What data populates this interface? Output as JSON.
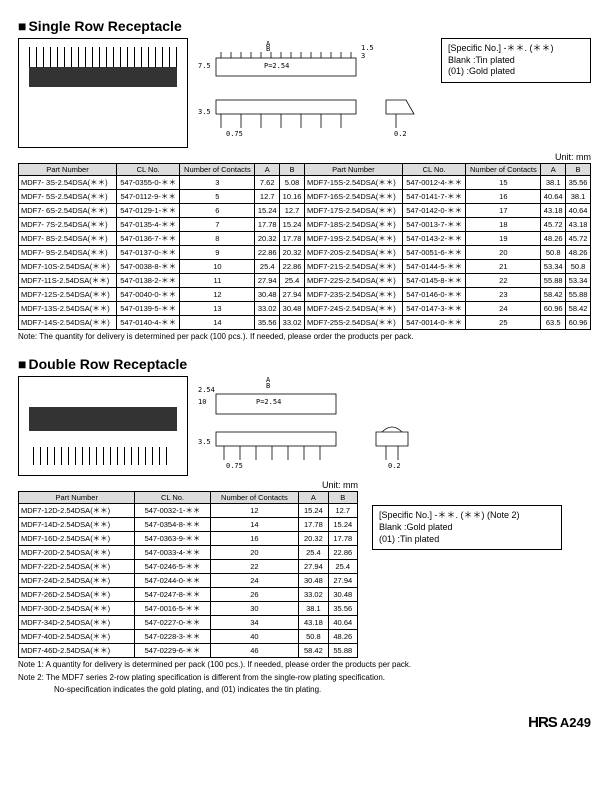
{
  "section1": {
    "title": "Single Row Receptacle",
    "legend": {
      "l1": "[Specific No.]   -＊＊. (＊＊)",
      "l2": "Blank   :Tin plated",
      "l3": "(01)      :Gold plated"
    },
    "unit": "Unit: mm",
    "headers_left": [
      "Part Number",
      "CL No.",
      "Number of Contacts",
      "A",
      "B"
    ],
    "headers_right": [
      "Part Number",
      "CL No.",
      "Number of Contacts",
      "A",
      "B"
    ],
    "rows": [
      [
        "MDF7-  3S-2.54DSA(＊＊)",
        "547-0355-0-＊＊",
        "3",
        "7.62",
        "5.08",
        "MDF7-15S-2.54DSA(＊＊)",
        "547-0012-4-＊＊",
        "15",
        "38.1",
        "35.56"
      ],
      [
        "MDF7-  5S-2.54DSA(＊＊)",
        "547-0112-9-＊＊",
        "5",
        "12.7",
        "10.16",
        "MDF7-16S-2.54DSA(＊＊)",
        "547-0141-7-＊＊",
        "16",
        "40.64",
        "38.1"
      ],
      [
        "MDF7-  6S-2.54DSA(＊＊)",
        "547-0129-1-＊＊",
        "6",
        "15.24",
        "12.7",
        "MDF7-17S-2.54DSA(＊＊)",
        "547-0142-0-＊＊",
        "17",
        "43.18",
        "40.64"
      ],
      [
        "MDF7-  7S-2.54DSA(＊＊)",
        "547-0135-4-＊＊",
        "7",
        "17.78",
        "15.24",
        "MDF7-18S-2.54DSA(＊＊)",
        "547-0013-7-＊＊",
        "18",
        "45.72",
        "43.18"
      ],
      [
        "MDF7-  8S-2.54DSA(＊＊)",
        "547-0136-7-＊＊",
        "8",
        "20.32",
        "17.78",
        "MDF7-19S-2.54DSA(＊＊)",
        "547-0143-2-＊＊",
        "19",
        "48.26",
        "45.72"
      ],
      [
        "MDF7-  9S-2.54DSA(＊＊)",
        "547-0137-0-＊＊",
        "9",
        "22.86",
        "20.32",
        "MDF7-20S-2.54DSA(＊＊)",
        "547-0051-6-＊＊",
        "20",
        "50.8",
        "48.26"
      ],
      [
        "MDF7-10S-2.54DSA(＊＊)",
        "547-0038-8-＊＊",
        "10",
        "25.4",
        "22.86",
        "MDF7-21S-2.54DSA(＊＊)",
        "547-0144-5-＊＊",
        "21",
        "53.34",
        "50.8"
      ],
      [
        "MDF7-11S-2.54DSA(＊＊)",
        "547-0138-2-＊＊",
        "11",
        "27.94",
        "25.4",
        "MDF7-22S-2.54DSA(＊＊)",
        "547-0145-8-＊＊",
        "22",
        "55.88",
        "53.34"
      ],
      [
        "MDF7-12S-2.54DSA(＊＊)",
        "547-0040-0-＊＊",
        "12",
        "30.48",
        "27.94",
        "MDF7-23S-2.54DSA(＊＊)",
        "547-0146-0-＊＊",
        "23",
        "58.42",
        "55.88"
      ],
      [
        "MDF7-13S-2.54DSA(＊＊)",
        "547-0139-5-＊＊",
        "13",
        "33.02",
        "30.48",
        "MDF7-24S-2.54DSA(＊＊)",
        "547-0147-3-＊＊",
        "24",
        "60.96",
        "58.42"
      ],
      [
        "MDF7-14S-2.54DSA(＊＊)",
        "547-0140-4-＊＊",
        "14",
        "35.56",
        "33.02",
        "MDF7-25S-2.54DSA(＊＊)",
        "547-0014-0-＊＊",
        "25",
        "63.5",
        "60.96"
      ]
    ],
    "note": "Note: The quantity for delivery is determined per pack (100 pcs.). If needed, please order the products per pack.",
    "dims": {
      "pitch": "P=2.54",
      "a_label": "A",
      "b_label": "B",
      "h1": "7.5",
      "h2": "3",
      "h3": "1.5",
      "w1": "3.5",
      "w2": "0.75",
      "w3": "0.2"
    }
  },
  "section2": {
    "title": "Double Row Receptacle",
    "legend": {
      "l1": "[Specific No.]   -＊＊. (＊＊) (Note 2)",
      "l2": "Blank   :Gold plated",
      "l3": "(01)      :Tin plated"
    },
    "unit": "Unit: mm",
    "headers": [
      "Part Number",
      "CL No.",
      "Number of Contacts",
      "A",
      "B"
    ],
    "rows": [
      [
        "MDF7-12D-2.54DSA(＊＊)",
        "547-0032-1-＊＊",
        "12",
        "15.24",
        "12.7"
      ],
      [
        "MDF7-14D-2.54DSA(＊＊)",
        "547-0354-8-＊＊",
        "14",
        "17.78",
        "15.24"
      ],
      [
        "MDF7-16D-2.54DSA(＊＊)",
        "547-0363-9-＊＊",
        "16",
        "20.32",
        "17.78"
      ],
      [
        "MDF7-20D-2.54DSA(＊＊)",
        "547-0033-4-＊＊",
        "20",
        "25.4",
        "22.86"
      ],
      [
        "MDF7-22D-2.54DSA(＊＊)",
        "547-0246-5-＊＊",
        "22",
        "27.94",
        "25.4"
      ],
      [
        "MDF7-24D-2.54DSA(＊＊)",
        "547-0244-0-＊＊",
        "24",
        "30.48",
        "27.94"
      ],
      [
        "MDF7-26D-2.54DSA(＊＊)",
        "547-0247-8-＊＊",
        "26",
        "33.02",
        "30.48"
      ],
      [
        "MDF7-30D-2.54DSA(＊＊)",
        "547-0016-5-＊＊",
        "30",
        "38.1",
        "35.56"
      ],
      [
        "MDF7-34D-2.54DSA(＊＊)",
        "547-0227-0-＊＊",
        "34",
        "43.18",
        "40.64"
      ],
      [
        "MDF7-40D-2.54DSA(＊＊)",
        "547-0228-3-＊＊",
        "40",
        "50.8",
        "48.26"
      ],
      [
        "MDF7-46D-2.54DSA(＊＊)",
        "547-0229-6-＊＊",
        "46",
        "58.42",
        "55.88"
      ]
    ],
    "note1": "Note 1: A quantity for delivery is determined per pack (100 pcs.). If needed, please order the products per pack.",
    "note2": "Note 2: The MDF7 series 2-row plating specification is different from the single-row plating specification.",
    "note2b": "No-specification indicates the gold plating, and (01) indicates the tin plating.",
    "dims": {
      "pitch": "P=2.54",
      "a_label": "A",
      "b_label": "B",
      "h1": "10",
      "h2": "2.54",
      "w1": "3.5",
      "w2": "0.75",
      "w3": "0.2"
    }
  },
  "footer": {
    "brand": "HRS",
    "page": "A249"
  }
}
